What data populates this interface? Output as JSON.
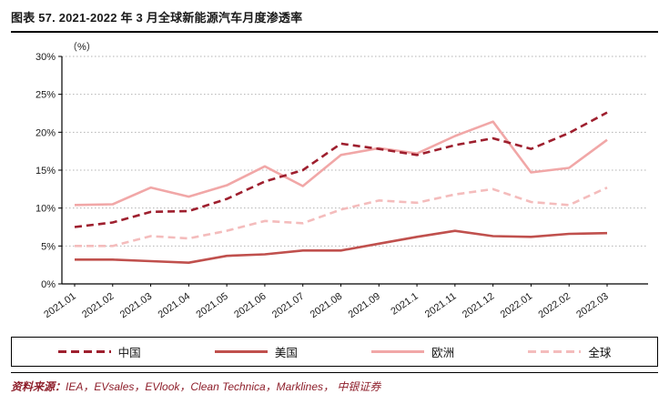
{
  "header": {
    "title": "图表 57. 2021-2022 年 3 月全球新能源汽车月度渗透率"
  },
  "footer": {
    "source_label": "资料来源：",
    "source_text": "IEA，EVsales，EVlook，Clean Technica，Marklines， 中银证券"
  },
  "chart_data": {
    "type": "line",
    "title": "2021-2022 年 3 月全球新能源汽车月度渗透率",
    "xlabel": "",
    "ylabel": "（%）",
    "unit_label": "（%）",
    "ylim": [
      0,
      30
    ],
    "y_ticks": [
      "0%",
      "5%",
      "10%",
      "15%",
      "20%",
      "25%",
      "30%"
    ],
    "grid": "horizontal dotted",
    "legend_position": "bottom",
    "categories": [
      "2021.01",
      "2021.02",
      "2021.03",
      "2021.04",
      "2021.05",
      "2021.06",
      "2021.07",
      "2021.08",
      "2021.09",
      "2021.1",
      "2021.11",
      "2021.12",
      "2022.01",
      "2022.02",
      "2022.03"
    ],
    "series": [
      {
        "name": "中国",
        "style": "dashed",
        "color": "#9e1f2e",
        "values": [
          7.5,
          8.1,
          9.5,
          9.6,
          11.2,
          13.5,
          15.0,
          18.5,
          17.8,
          17.0,
          18.3,
          19.2,
          17.8,
          19.9,
          22.6
        ]
      },
      {
        "name": "美国",
        "style": "solid",
        "color": "#c0504d",
        "values": [
          3.2,
          3.2,
          3.0,
          2.8,
          3.7,
          3.9,
          4.4,
          4.4,
          5.3,
          6.2,
          7.0,
          6.3,
          6.2,
          6.6,
          6.7
        ]
      },
      {
        "name": "欧洲",
        "style": "solid",
        "color": "#f1a7a7",
        "values": [
          10.4,
          10.5,
          12.7,
          11.5,
          13.0,
          15.5,
          12.9,
          17.0,
          17.9,
          17.2,
          19.5,
          21.4,
          14.7,
          15.3,
          19.0
        ]
      },
      {
        "name": "全球",
        "style": "dashed",
        "color": "#f4bcbc",
        "values": [
          5.0,
          5.0,
          6.3,
          6.0,
          7.0,
          8.3,
          8.0,
          9.8,
          11.0,
          10.7,
          11.8,
          12.5,
          10.8,
          10.4,
          12.7
        ]
      }
    ]
  }
}
